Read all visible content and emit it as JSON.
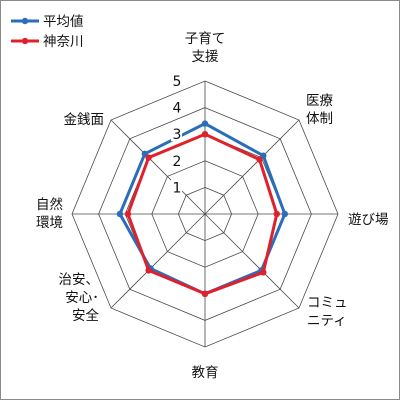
{
  "chart_data": {
    "type": "radar",
    "r_min": 0,
    "r_max": 5,
    "ticks": [
      "1",
      "2",
      "3",
      "4",
      "5"
    ],
    "grid": true,
    "legend_position": "top-left",
    "categories": [
      [
        "子育て",
        "支援"
      ],
      [
        "医療",
        "体制"
      ],
      [
        "遊び場"
      ],
      [
        "コミュ",
        "ニティ"
      ],
      [
        "教育"
      ],
      [
        "治安、",
        "安心･",
        "安全"
      ],
      [
        "自然",
        "環境"
      ],
      [
        "金銭面"
      ]
    ],
    "series": [
      {
        "name": "平均値",
        "color": "#2a6ebb",
        "values": [
          3.4,
          3.1,
          3.0,
          3.0,
          3.0,
          2.9,
          3.2,
          3.2
        ]
      },
      {
        "name": "神奈川",
        "color": "#e0202a",
        "values": [
          3.0,
          2.9,
          2.7,
          3.1,
          3.0,
          3.0,
          2.9,
          3.0
        ]
      }
    ]
  }
}
